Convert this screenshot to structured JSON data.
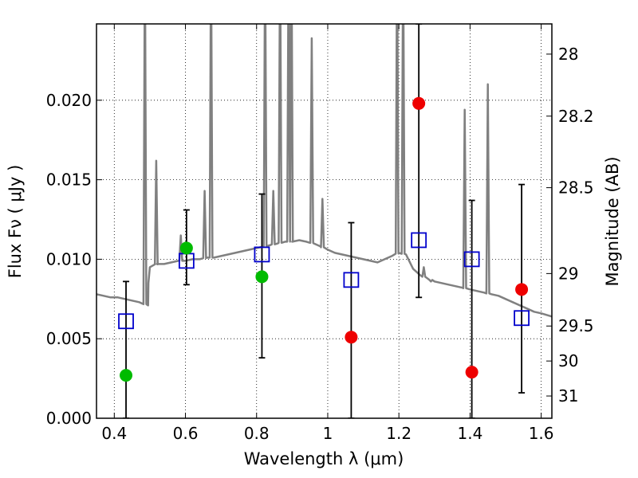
{
  "chart_data": {
    "type": "scatter",
    "xlabel": "Wavelength  λ (μm)",
    "ylabel": "Flux  Fν  ( μJy )",
    "ylabel_right": "Magnitude (AB)",
    "xlim": [
      0.35,
      1.63
    ],
    "ylim": [
      0.0,
      0.0248
    ],
    "grid": true,
    "x_ticks": [
      0.4,
      0.6,
      0.8,
      1.0,
      1.2,
      1.4,
      1.6
    ],
    "x_tick_labels": [
      "0.4",
      "0.6",
      "0.8",
      "1",
      "1.2",
      "1.4",
      "1.6"
    ],
    "y_ticks": [
      0.0,
      0.005,
      0.01,
      0.015,
      0.02
    ],
    "y_tick_labels": [
      "0.000",
      "0.005",
      "0.010",
      "0.015",
      "0.020"
    ],
    "right_ticks": [
      {
        "label": "28",
        "flux": 0.0229
      },
      {
        "label": "28.2",
        "flux": 0.019
      },
      {
        "label": "28.5",
        "flux": 0.0145
      },
      {
        "label": "29",
        "flux": 0.0091
      },
      {
        "label": "29.5",
        "flux": 0.0058
      },
      {
        "label": "30",
        "flux": 0.0036
      },
      {
        "label": "31",
        "flux": 0.0014
      }
    ],
    "colors": {
      "model": "#808080",
      "model_points": "#0000cc",
      "detections": "#00bb00",
      "upper_limits": "#ee0000",
      "errorbars": "#000000"
    },
    "model_spectrum": {
      "x": [
        0.35,
        0.37,
        0.39,
        0.41,
        0.43,
        0.45,
        0.47,
        0.495,
        0.496,
        0.5,
        0.52,
        0.54,
        0.56,
        0.58,
        0.6,
        0.62,
        0.64,
        0.66,
        0.68,
        0.7,
        0.72,
        0.74,
        0.76,
        0.78,
        0.8,
        0.82,
        0.84,
        0.86,
        0.88,
        0.9,
        0.92,
        0.94,
        0.96,
        0.98,
        1.0,
        1.02,
        1.04,
        1.06,
        1.08,
        1.1,
        1.12,
        1.14,
        1.16,
        1.18,
        1.2,
        1.22,
        1.24,
        1.26,
        1.28,
        1.3,
        1.32,
        1.34,
        1.36,
        1.38,
        1.4,
        1.42,
        1.44,
        1.46,
        1.48,
        1.5,
        1.52,
        1.54,
        1.56,
        1.58,
        1.6,
        1.63
      ],
      "y": [
        0.0078,
        0.0077,
        0.0076,
        0.0076,
        0.0075,
        0.0074,
        0.0073,
        0.0071,
        0.0085,
        0.0095,
        0.0097,
        0.0097,
        0.0098,
        0.0099,
        0.0099,
        0.01,
        0.01,
        0.0101,
        0.0101,
        0.0102,
        0.0103,
        0.0104,
        0.0105,
        0.0106,
        0.0107,
        0.0108,
        0.0109,
        0.011,
        0.0111,
        0.0111,
        0.0112,
        0.0111,
        0.011,
        0.0108,
        0.0106,
        0.0104,
        0.0103,
        0.0102,
        0.0101,
        0.01,
        0.0099,
        0.0098,
        0.01,
        0.0102,
        0.0104,
        0.0103,
        0.0094,
        0.009,
        0.0088,
        0.0086,
        0.0085,
        0.0084,
        0.0083,
        0.0082,
        0.0081,
        0.008,
        0.0079,
        0.0078,
        0.0077,
        0.0075,
        0.0073,
        0.0071,
        0.0069,
        0.0067,
        0.0066,
        0.0064
      ],
      "lines": [
        {
          "x": 0.486,
          "peak": 0.03
        },
        {
          "x": 0.518,
          "peak": 0.0162
        },
        {
          "x": 0.587,
          "peak": 0.0115
        },
        {
          "x": 0.654,
          "peak": 0.0143
        },
        {
          "x": 0.672,
          "peak": 0.03
        },
        {
          "x": 0.824,
          "peak": 0.03
        },
        {
          "x": 0.847,
          "peak": 0.0143
        },
        {
          "x": 0.866,
          "peak": 0.03
        },
        {
          "x": 0.89,
          "peak": 0.03
        },
        {
          "x": 0.898,
          "peak": 0.03
        },
        {
          "x": 0.955,
          "peak": 0.0239
        },
        {
          "x": 0.985,
          "peak": 0.0138
        },
        {
          "x": 1.195,
          "peak": 0.03
        },
        {
          "x": 1.212,
          "peak": 0.03
        },
        {
          "x": 1.27,
          "peak": 0.0095
        },
        {
          "x": 1.29,
          "peak": 0.0086
        },
        {
          "x": 1.385,
          "peak": 0.0194
        },
        {
          "x": 1.45,
          "peak": 0.021
        }
      ]
    },
    "model_points": {
      "x": [
        0.433,
        0.603,
        0.815,
        1.066,
        1.256,
        1.405,
        1.545
      ],
      "y": [
        0.0061,
        0.0099,
        0.0103,
        0.0087,
        0.0112,
        0.01,
        0.0063
      ]
    },
    "detections": [
      {
        "x": 0.433,
        "y": 0.0027,
        "err_low": 0.0,
        "err_high": 0.0086
      },
      {
        "x": 0.603,
        "y": 0.0107,
        "err_low": 0.0084,
        "err_high": 0.0131
      },
      {
        "x": 0.815,
        "y": 0.0089,
        "err_low": 0.0038,
        "err_high": 0.0141
      }
    ],
    "upper_limits": [
      {
        "x": 1.066,
        "y": 0.0051,
        "err_low": 0.0,
        "err_high": 0.0123
      },
      {
        "x": 1.256,
        "y": 0.0198,
        "err_low": 0.0076,
        "err_high": 0.0248
      },
      {
        "x": 1.405,
        "y": 0.0029,
        "err_low": 0.0,
        "err_high": 0.0137
      },
      {
        "x": 1.545,
        "y": 0.0081,
        "err_low": 0.0016,
        "err_high": 0.0147
      }
    ]
  }
}
